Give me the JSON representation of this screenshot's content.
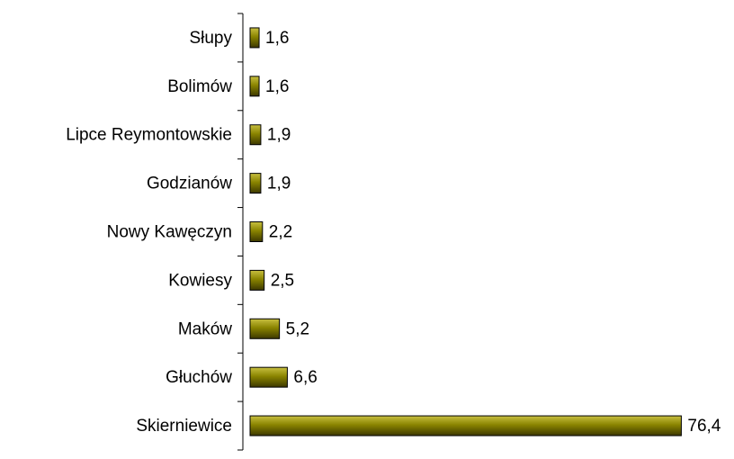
{
  "chart_data": {
    "type": "hbar",
    "categories": [
      "Słupy",
      "Bolimów",
      "Lipce Reymontowskie",
      "Godzianów",
      "Nowy Kawęczyn",
      "Kowiesy",
      "Maków",
      "Głuchów",
      "Skierniewice"
    ],
    "values": [
      1.6,
      1.6,
      1.9,
      1.9,
      2.2,
      2.5,
      5.2,
      6.6,
      76.4
    ],
    "value_labels": [
      "1,6",
      "1,6",
      "1,9",
      "1,9",
      "2,2",
      "2,5",
      "5,2",
      "6,6",
      "76,4"
    ],
    "color": "#8a8400",
    "xlim": [
      0,
      80
    ]
  }
}
